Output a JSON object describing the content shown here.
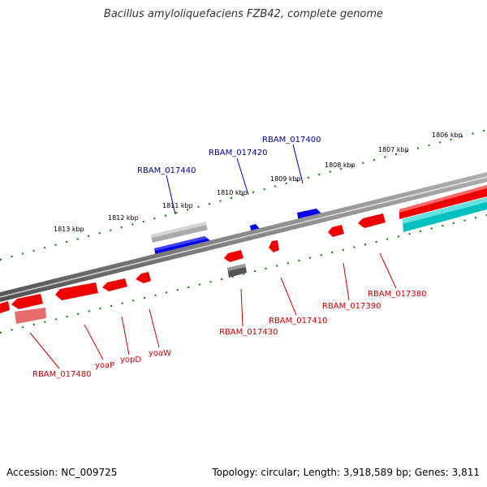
{
  "title": "Bacillus amyloliquefaciens FZB42, complete genome",
  "footer": {
    "accession": "Accession: NC_009725",
    "topology": "Topology: circular; Length: 3,918,589 bp; Genes: 3,811"
  },
  "kbp_labels": [
    "1806 kbp",
    "1807 kbp",
    "1808 kbp",
    "1809 kbp",
    "1810 kbp",
    "1811 kbp",
    "1812 kbp",
    "1813 kbp"
  ],
  "forward_gene_labels": [
    "RBAM_017400",
    "RBAM_017420",
    "RBAM_017440"
  ],
  "reverse_gene_labels": [
    "RBAM_017380",
    "RBAM_017390",
    "RBAM_017410",
    "RBAM_017430",
    "yoaW",
    "yopD",
    "yoaP",
    "RBAM_017480"
  ],
  "colors": {
    "forward_gene": "#0000ee",
    "reverse_gene": "#ee0000",
    "rrna_gene": "#00c0c0",
    "pseudo_gene": "#555555",
    "backbone": "#777777",
    "tick": "#007700",
    "forward_label": "#00008b",
    "reverse_label": "#cc0000"
  }
}
